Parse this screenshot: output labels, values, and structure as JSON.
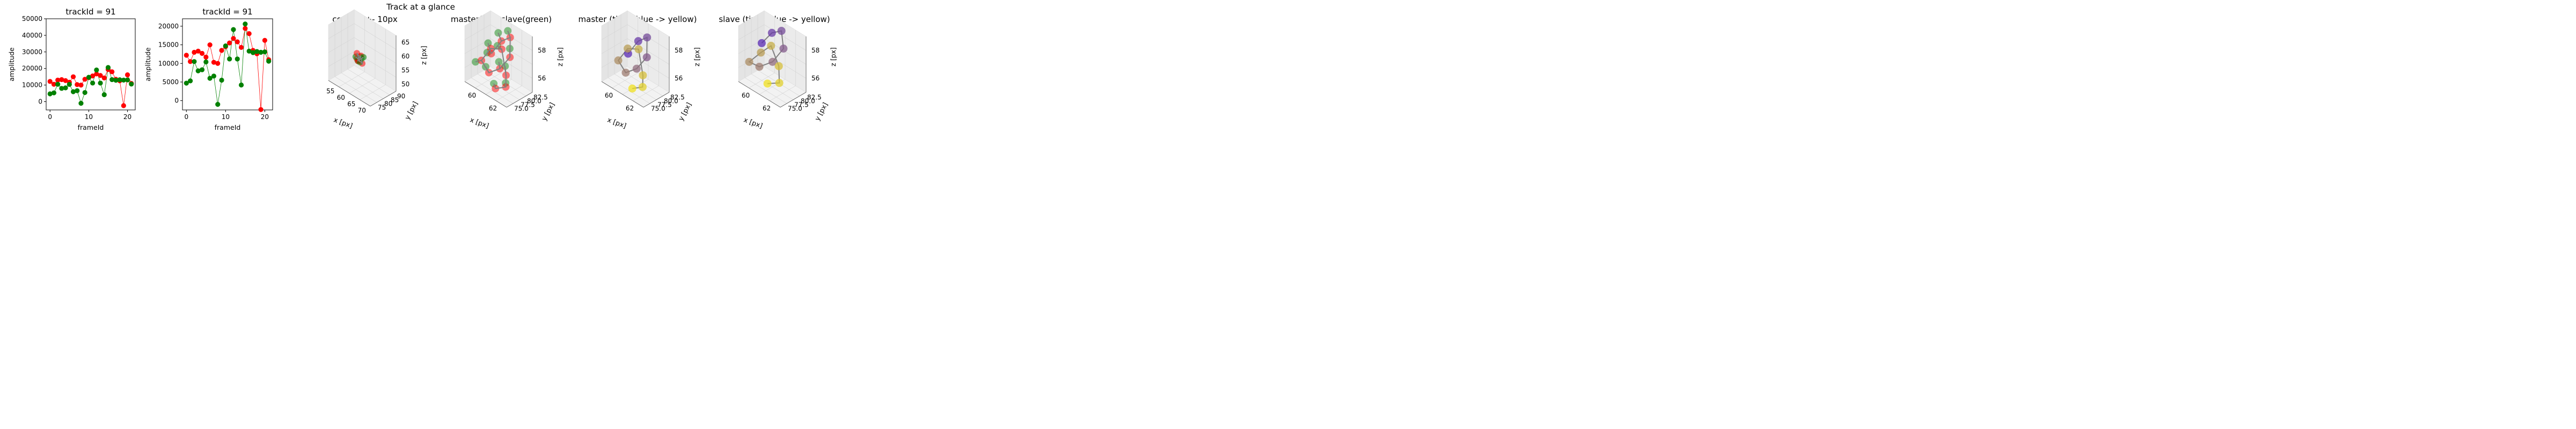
{
  "figure": {
    "suptitle": "Track at a glance"
  },
  "colors": {
    "master": "#ff0000",
    "slave": "#008000",
    "line": "#808080",
    "time_start": "#5b2bb5",
    "time_end": "#f0e020"
  },
  "chart_data": [
    {
      "type": "scatter",
      "title": "trackId = 91",
      "xlabel": "frameId",
      "ylabel": "amplitude",
      "xlim": [
        -1,
        22
      ],
      "ylim": [
        -5000,
        50000
      ],
      "xticks": [
        "0",
        "10",
        "20"
      ],
      "yticks": [
        "0",
        "10000",
        "20000",
        "30000",
        "40000",
        "50000"
      ],
      "series": [
        {
          "color": "#ff0000",
          "x": [
            0,
            1,
            2,
            3,
            4,
            5,
            6,
            7,
            8,
            9,
            10,
            11,
            12,
            13,
            14,
            15,
            16,
            17,
            18,
            19,
            20,
            21
          ],
          "y": [
            12200,
            10500,
            13000,
            13300,
            12700,
            11700,
            15000,
            10300,
            10000,
            13500,
            14500,
            15500,
            16700,
            15800,
            14300,
            19400,
            18000,
            13500,
            12600,
            -2400,
            16200,
            11000
          ]
        },
        {
          "color": "#008000",
          "x": [
            0,
            1,
            2,
            3,
            4,
            5,
            6,
            7,
            8,
            9,
            10,
            11,
            12,
            13,
            14,
            15,
            16,
            17,
            18,
            19,
            20,
            21
          ],
          "y": [
            4700,
            5300,
            10500,
            8000,
            8300,
            10400,
            6000,
            6600,
            -1000,
            5500,
            14700,
            11200,
            19100,
            11200,
            4200,
            20600,
            13300,
            12900,
            13200,
            13000,
            13100,
            10600
          ]
        }
      ]
    },
    {
      "type": "scatter",
      "title": "trackId = 91",
      "xlabel": "frameId",
      "ylabel": "amplitude",
      "xlim": [
        -1,
        22
      ],
      "ylim": [
        -2500,
        22000
      ],
      "xticks": [
        "0",
        "10",
        "20"
      ],
      "yticks": [
        "0",
        "5000",
        "10000",
        "15000",
        "20000"
      ],
      "series": [
        {
          "color": "#ff0000",
          "x": [
            0,
            1,
            2,
            3,
            4,
            5,
            6,
            7,
            8,
            9,
            10,
            11,
            12,
            13,
            14,
            15,
            16,
            17,
            18,
            19,
            20,
            21
          ],
          "y": [
            12200,
            10500,
            13000,
            13300,
            12700,
            11700,
            15000,
            10300,
            10000,
            13500,
            14500,
            15500,
            16700,
            15800,
            14300,
            19400,
            18000,
            13500,
            12600,
            -2400,
            16200,
            11000
          ]
        },
        {
          "color": "#008000",
          "x": [
            0,
            1,
            2,
            3,
            4,
            5,
            6,
            7,
            8,
            9,
            10,
            11,
            12,
            13,
            14,
            15,
            16,
            17,
            18,
            19,
            20,
            21
          ],
          "y": [
            4700,
            5300,
            10500,
            8000,
            8300,
            10400,
            6000,
            6600,
            -1000,
            5500,
            14700,
            11200,
            19100,
            11200,
            4200,
            20600,
            13300,
            12900,
            13200,
            13000,
            13100,
            10600
          ]
        }
      ]
    },
    {
      "type": "scatter",
      "title": "context +- 10px",
      "xlabel": "x [px]",
      "ylabel": "y [px]",
      "zlabel": "z [px]",
      "xticks": [
        "55",
        "60",
        "65",
        "70"
      ],
      "yticks": [
        "75",
        "80",
        "85",
        "90"
      ],
      "zticks": [
        "50",
        "55",
        "60",
        "65"
      ],
      "xlim": [
        52,
        72
      ],
      "ylim": [
        70,
        92
      ],
      "zlim": [
        47,
        67
      ],
      "points": [
        [
          60,
          80,
          56
        ],
        [
          61,
          81,
          57
        ],
        [
          62,
          80,
          58
        ],
        [
          61,
          79,
          56
        ],
        [
          60,
          81,
          55
        ],
        [
          62,
          82,
          57
        ],
        [
          61,
          80,
          56
        ],
        [
          60,
          79,
          57
        ],
        [
          62,
          81,
          55
        ],
        [
          61,
          82,
          56
        ],
        [
          60,
          80,
          58
        ],
        [
          62,
          79,
          56
        ]
      ]
    },
    {
      "type": "scatter",
      "title": "master(red) slave(green)",
      "xlabel": "x [px]",
      "ylabel": "y [px]",
      "zlabel": "z [px]",
      "xticks": [
        "60",
        "62"
      ],
      "yticks": [
        "75.0",
        "77.5",
        "80.0",
        "82.5"
      ],
      "zticks": [
        "56",
        "58"
      ]
    },
    {
      "type": "scatter",
      "title": "master (time: blue -> yellow)",
      "xlabel": "x [px]",
      "ylabel": "y [px]",
      "zlabel": "z [px]",
      "xticks": [
        "60",
        "62"
      ],
      "yticks": [
        "75.0",
        "77.5",
        "80.0",
        "82.5"
      ],
      "zticks": [
        "56",
        "58"
      ]
    },
    {
      "type": "scatter",
      "title": "slave (time: blue -> yellow)",
      "xlabel": "x [px]",
      "ylabel": "y [px]",
      "zlabel": "z [px]",
      "xticks": [
        "60",
        "62"
      ],
      "yticks": [
        "75.0",
        "77.5",
        "80.0",
        "82.5"
      ],
      "zticks": [
        "56",
        "58"
      ]
    }
  ],
  "track3d": {
    "master": [
      [
        60.2,
        79.0,
        57.2
      ],
      [
        61.0,
        80.5,
        58.4
      ],
      [
        61.8,
        81.5,
        58.9
      ],
      [
        62.3,
        80.0,
        57.6
      ],
      [
        61.5,
        78.5,
        56.5
      ],
      [
        60.6,
        77.0,
        56.0
      ],
      [
        59.8,
        76.5,
        56.8
      ],
      [
        60.5,
        78.0,
        57.9
      ],
      [
        61.4,
        79.5,
        58.0
      ],
      [
        62.5,
        78.0,
        56.4
      ],
      [
        63.0,
        76.5,
        55.8
      ],
      [
        62.0,
        75.5,
        55.4
      ]
    ],
    "slave": [
      [
        59.6,
        79.5,
        57.8
      ],
      [
        60.4,
        81.0,
        58.8
      ],
      [
        61.3,
        82.0,
        59.2
      ],
      [
        62.1,
        80.5,
        58.2
      ],
      [
        61.2,
        79.0,
        56.9
      ],
      [
        60.0,
        77.5,
        56.2
      ],
      [
        59.2,
        76.0,
        56.5
      ],
      [
        60.2,
        77.5,
        57.5
      ],
      [
        61.0,
        79.0,
        58.2
      ],
      [
        62.2,
        78.5,
        57.0
      ],
      [
        62.8,
        77.0,
        56.0
      ],
      [
        61.6,
        76.0,
        55.6
      ]
    ],
    "xlim": [
      58.5,
      64
    ],
    "ylim": [
      74,
      83.5
    ],
    "zlim": [
      54.8,
      59.6
    ]
  }
}
